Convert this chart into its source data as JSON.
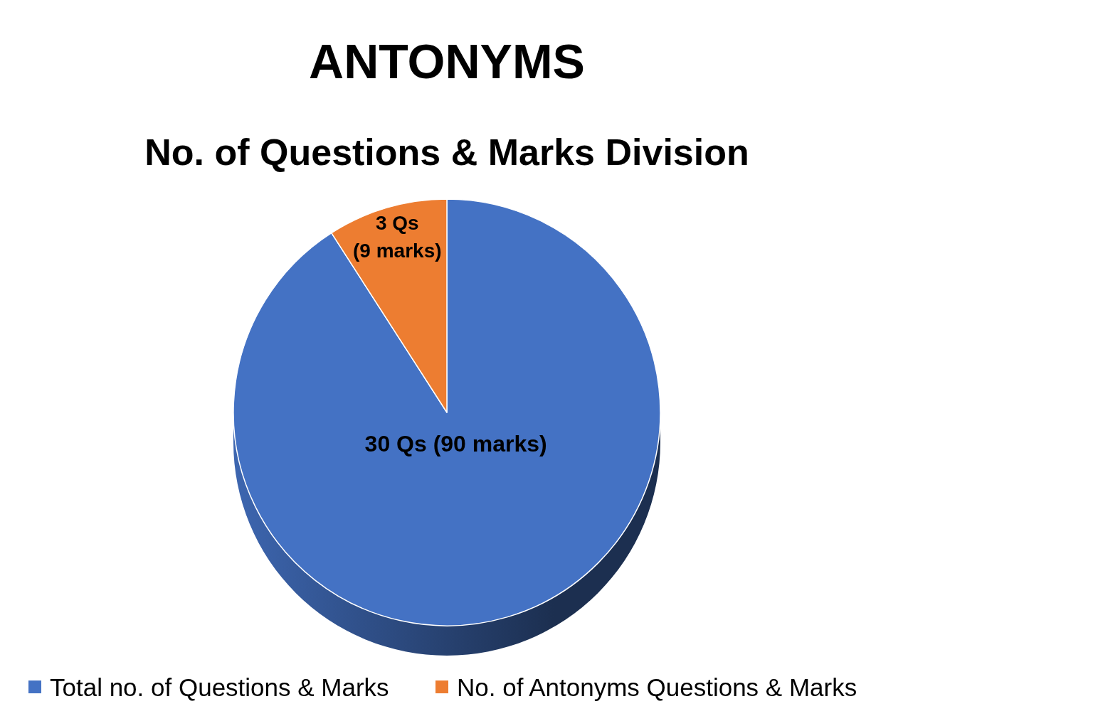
{
  "chart_data": {
    "type": "pie",
    "title": "ANTONYMS",
    "subtitle": "No. of Questions & Marks Division",
    "categories": [
      "Total no. of Questions & Marks",
      "No. of Antonyms Questions & Marks"
    ],
    "values": [
      30,
      3
    ],
    "colors": [
      "#4472c4",
      "#ed7d31"
    ],
    "value_labels": [
      "30 Qs (90 marks)",
      "3 Qs\n(9 marks)"
    ],
    "legend": "bottom"
  }
}
